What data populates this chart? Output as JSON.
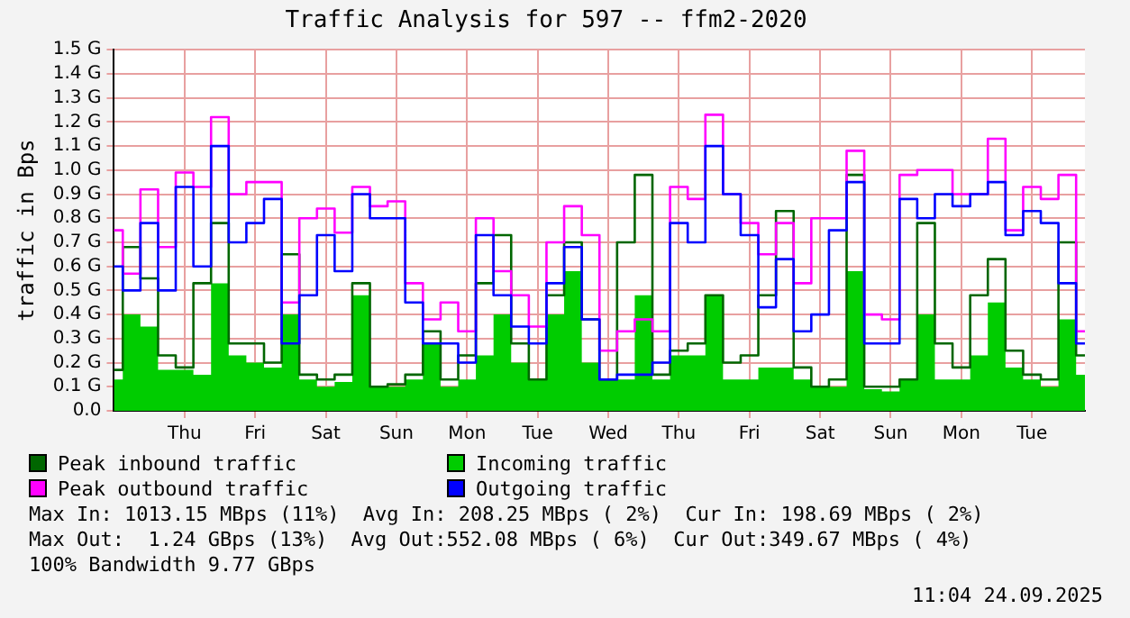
{
  "chart_data": {
    "type": "step",
    "title": "Traffic Analysis for 597 -- ffm2-2020",
    "ylabel": "traffic in Bps",
    "categories": [
      null,
      null,
      null,
      null,
      "Thu",
      null,
      null,
      null,
      "Fri",
      null,
      null,
      null,
      "Sat",
      null,
      null,
      null,
      "Sun",
      null,
      null,
      null,
      "Mon",
      null,
      null,
      null,
      "Tue",
      null,
      null,
      null,
      "Wed",
      null,
      null,
      null,
      "Thu",
      null,
      null,
      null,
      "Fri",
      null,
      null,
      null,
      "Sat",
      null,
      null,
      null,
      "Sun",
      null,
      null,
      null,
      "Mon",
      null,
      null,
      null,
      "Tue",
      null,
      null,
      null
    ],
    "ylim": [
      0,
      1.5
    ],
    "yticks": [
      {
        "value": 0,
        "label": "0.0"
      },
      {
        "value": 0.1,
        "label": "0.1 G"
      },
      {
        "value": 0.2,
        "label": "0.2 G"
      },
      {
        "value": 0.3,
        "label": "0.3 G"
      },
      {
        "value": 0.4,
        "label": "0.4 G"
      },
      {
        "value": 0.5,
        "label": "0.5 G"
      },
      {
        "value": 0.6,
        "label": "0.6 G"
      },
      {
        "value": 0.7,
        "label": "0.7 G"
      },
      {
        "value": 0.8,
        "label": "0.8 G"
      },
      {
        "value": 0.9,
        "label": "0.9 G"
      },
      {
        "value": 1,
        "label": "1.0 G"
      },
      {
        "value": 1.1,
        "label": "1.1 G"
      },
      {
        "value": 1.2,
        "label": "1.2 G"
      },
      {
        "value": 1.3,
        "label": "1.3 G"
      },
      {
        "value": 1.4,
        "label": "1.4 G"
      },
      {
        "value": 1.5,
        "label": "1.5 G"
      }
    ],
    "grid": true,
    "legend": "bottom",
    "marker": "none",
    "series": [
      {
        "name": "Peak inbound traffic",
        "color": "#006600",
        "values": [
          0.17,
          0.68,
          0.55,
          0.23,
          0.18,
          0.53,
          0.78,
          0.28,
          0.28,
          0.2,
          0.65,
          0.15,
          0.13,
          0.15,
          0.53,
          0.1,
          0.11,
          0.15,
          0.33,
          0.13,
          0.23,
          0.53,
          0.73,
          0.28,
          0.13,
          0.48,
          0.7,
          0.38,
          0.13,
          0.7,
          0.98,
          0.15,
          0.25,
          0.28,
          0.48,
          0.2,
          0.23,
          0.48,
          0.83,
          0.18,
          0.1,
          0.13,
          0.98,
          0.1,
          0.1,
          0.13,
          0.78,
          0.28,
          0.18,
          0.48,
          0.63,
          0.25,
          0.15,
          0.13,
          0.7,
          0.23
        ]
      },
      {
        "name": "Incoming traffic",
        "type": "area",
        "color": "#00cc00",
        "values": [
          0.13,
          0.4,
          0.35,
          0.17,
          0.17,
          0.15,
          0.53,
          0.23,
          0.2,
          0.18,
          0.4,
          0.13,
          0.1,
          0.12,
          0.48,
          0.1,
          0.1,
          0.13,
          0.28,
          0.1,
          0.13,
          0.23,
          0.4,
          0.2,
          0.13,
          0.4,
          0.58,
          0.2,
          0.13,
          0.13,
          0.48,
          0.13,
          0.23,
          0.23,
          0.48,
          0.13,
          0.13,
          0.18,
          0.18,
          0.13,
          0.1,
          0.1,
          0.58,
          0.09,
          0.08,
          0.13,
          0.4,
          0.13,
          0.13,
          0.23,
          0.45,
          0.18,
          0.13,
          0.1,
          0.38,
          0.15
        ]
      },
      {
        "name": "Peak outbound traffic",
        "color": "#ff00ff",
        "values": [
          0.75,
          0.57,
          0.92,
          0.68,
          0.99,
          0.93,
          1.22,
          0.9,
          0.95,
          0.95,
          0.45,
          0.8,
          0.84,
          0.74,
          0.93,
          0.85,
          0.87,
          0.53,
          0.38,
          0.45,
          0.33,
          0.8,
          0.58,
          0.48,
          0.35,
          0.7,
          0.85,
          0.73,
          0.25,
          0.33,
          0.38,
          0.33,
          0.93,
          0.88,
          1.23,
          0.9,
          0.78,
          0.65,
          0.78,
          0.53,
          0.8,
          0.8,
          1.08,
          0.4,
          0.38,
          0.98,
          1.0,
          1.0,
          0.9,
          0.9,
          1.13,
          0.75,
          0.93,
          0.88,
          0.98,
          0.33
        ]
      },
      {
        "name": "Outgoing traffic",
        "color": "#0000ff",
        "values": [
          0.6,
          0.5,
          0.78,
          0.5,
          0.93,
          0.6,
          1.1,
          0.7,
          0.78,
          0.88,
          0.28,
          0.48,
          0.73,
          0.58,
          0.9,
          0.8,
          0.8,
          0.45,
          0.28,
          0.28,
          0.2,
          0.73,
          0.48,
          0.35,
          0.28,
          0.53,
          0.68,
          0.38,
          0.13,
          0.15,
          0.15,
          0.2,
          0.78,
          0.7,
          1.1,
          0.9,
          0.73,
          0.43,
          0.63,
          0.33,
          0.4,
          0.75,
          0.95,
          0.28,
          0.28,
          0.88,
          0.8,
          0.9,
          0.85,
          0.9,
          0.95,
          0.73,
          0.83,
          0.78,
          0.53,
          0.28
        ]
      }
    ],
    "annotations": [
      "Max In: 1013.15 MBps (11%)  Avg In: 208.25 MBps ( 2%)  Cur In: 198.69 MBps ( 2%)",
      "Max Out:  1.24 GBps (13%)  Avg Out:552.08 MBps ( 6%)  Cur Out:349.67 MBps ( 4%)",
      "100% Bandwidth 9.77 GBps",
      "11:04 24.09.2025"
    ]
  }
}
